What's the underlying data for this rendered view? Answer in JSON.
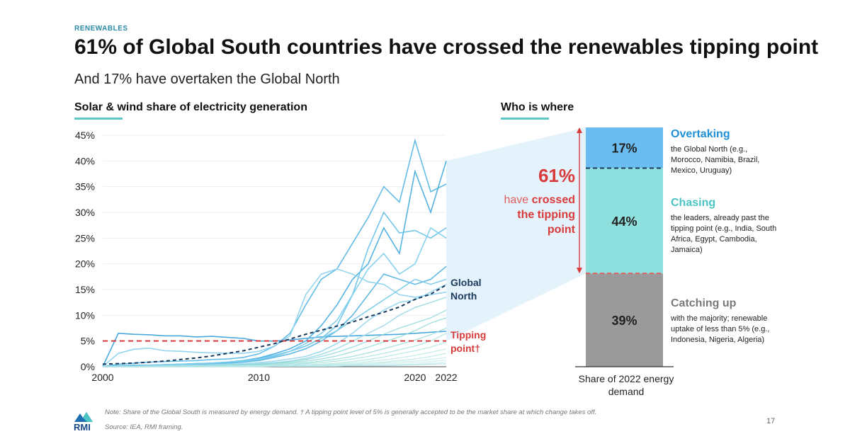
{
  "header": {
    "tag": "RENEWABLES",
    "title": "61% of Global South countries have crossed the renewables tipping point",
    "subtitle": "And 17% have overtaken the Global North"
  },
  "left_section_title": "Solar & wind share of electricity generation",
  "right_section_title": "Who is where",
  "callout": {
    "big_pct": "61%",
    "line1": "have ",
    "line1_bold": "crossed",
    "line2_bold": "the tipping",
    "line3_bold": "point"
  },
  "categories": [
    {
      "name": "Overtaking",
      "pct_label": "17%",
      "desc": "the Global North (e.g., Morocco, Namibia, Brazil, Mexico, Uruguay)",
      "color": "#1f8fd6"
    },
    {
      "name": "Chasing",
      "pct_label": "44%",
      "desc": "the leaders, already past the tipping point (e.g., India, South Africa, Egypt, Cambodia, Jamaica)",
      "color": "#4cc4c4"
    },
    {
      "name": "Catching up",
      "pct_label": "39%",
      "desc": "with the majority; renewable uptake of less than 5% (e.g., Indonesia, Nigeria, Algeria)",
      "color": "#7a7a7a"
    }
  ],
  "share_label": "Share of 2022 energy demand",
  "footer": {
    "note": "Note: Share of the Global South is measured by energy demand. † A tipping point level of 5% is generally accepted to be the market share at which change takes off.",
    "source": "Source: IEA, RMI framing.",
    "page": "17",
    "logo_text": "RMI"
  },
  "colors": {
    "accent": "#5cc8c8",
    "tipping_red": "#d93a3a",
    "global_north": "#1a3a5c",
    "bar_overtaking": "#6bbcf0",
    "bar_chasing": "#8ee0df",
    "bar_catching": "#9a9a9a"
  },
  "chart_data": [
    {
      "type": "line",
      "title": "Solar & wind share of electricity generation",
      "xlabel": "",
      "ylabel": "",
      "x": [
        2000,
        2001,
        2002,
        2003,
        2004,
        2005,
        2006,
        2007,
        2008,
        2009,
        2010,
        2011,
        2012,
        2013,
        2014,
        2015,
        2016,
        2017,
        2018,
        2019,
        2020,
        2021,
        2022
      ],
      "xticks": [
        "2000",
        "2010",
        "2020",
        "2022"
      ],
      "xtick_values": [
        2000,
        2010,
        2020,
        2022
      ],
      "yticks": [
        "0%",
        "5%",
        "10%",
        "15%",
        "20%",
        "25%",
        "30%",
        "35%",
        "40%",
        "45%"
      ],
      "ylim": [
        0,
        45
      ],
      "xlim": [
        2000,
        2022
      ],
      "global_north": {
        "name": "Global North",
        "values": [
          0.5,
          0.6,
          0.7,
          0.9,
          1.1,
          1.4,
          1.7,
          2.1,
          2.6,
          3.1,
          3.8,
          4.5,
          5.4,
          6.3,
          7.1,
          7.9,
          8.7,
          9.7,
          10.6,
          11.6,
          13.1,
          14.1,
          15.9
        ]
      },
      "tipping_point": {
        "name": "Tipping point†",
        "value": 5
      },
      "series": [
        {
          "values": [
            0,
            6.5,
            6.3,
            6.2,
            6.0,
            6.0,
            5.8,
            5.9,
            5.7,
            5.5,
            5.0,
            5.0,
            5.2,
            5.5,
            5.8,
            5.9,
            6.0,
            6.1,
            6.2,
            6.3,
            6.5,
            6.7,
            6.9
          ]
        },
        {
          "values": [
            0,
            0.5,
            0.7,
            0.9,
            1.0,
            1.1,
            1.2,
            1.4,
            1.5,
            1.8,
            2.5,
            4.0,
            6.5,
            12.0,
            17.0,
            19.0,
            24.0,
            29.0,
            35.0,
            32.0,
            44.0,
            34.0,
            35.5
          ]
        },
        {
          "values": [
            0,
            0.2,
            0.3,
            0.3,
            0.4,
            0.5,
            0.6,
            0.7,
            0.9,
            1.2,
            1.7,
            2.5,
            3.5,
            5.0,
            8.0,
            12.0,
            17.0,
            20.0,
            27.0,
            22.0,
            38.0,
            30.0,
            40.0
          ]
        },
        {
          "values": [
            0,
            0.1,
            0.2,
            0.2,
            0.3,
            0.4,
            0.5,
            0.7,
            0.9,
            1.2,
            1.6,
            2.2,
            3.0,
            4.0,
            5.5,
            8.0,
            14.0,
            23.0,
            30.0,
            26.0,
            26.5,
            25.0,
            27.0
          ]
        },
        {
          "values": [
            0,
            0.1,
            0.1,
            0.2,
            0.3,
            0.4,
            0.5,
            0.6,
            0.8,
            1.0,
            1.4,
            2.0,
            3.0,
            4.5,
            6.5,
            9.0,
            14.0,
            19.0,
            22.0,
            18.0,
            20.0,
            27.0,
            25.0
          ]
        },
        {
          "values": [
            0,
            0.1,
            0.1,
            0.2,
            0.2,
            0.3,
            0.4,
            0.5,
            0.7,
            0.9,
            1.2,
            1.8,
            2.5,
            3.5,
            5.0,
            7.0,
            10.0,
            14.0,
            18.0,
            17.0,
            16.0,
            17.0,
            19.5
          ]
        },
        {
          "values": [
            0,
            2.6,
            3.4,
            3.6,
            3.1,
            3.0,
            2.8,
            2.7,
            2.6,
            2.6,
            3.0,
            4.0,
            6.0,
            14.0,
            18.0,
            19.0,
            18.0,
            16.5,
            16.0,
            14.0,
            13.5,
            14.0,
            14.5
          ]
        },
        {
          "values": [
            0,
            0.1,
            0.2,
            0.3,
            0.4,
            0.5,
            0.6,
            0.7,
            0.9,
            1.1,
            1.5,
            2.0,
            3.0,
            4.0,
            5.5,
            7.0,
            9.0,
            11.0,
            13.0,
            15.0,
            17.0,
            16.0,
            17.0
          ]
        },
        {
          "values": [
            0,
            0.1,
            0.1,
            0.2,
            0.2,
            0.3,
            0.3,
            0.4,
            0.5,
            0.6,
            0.8,
            1.1,
            1.5,
            2.0,
            3.0,
            4.5,
            6.5,
            9.0,
            11.0,
            12.5,
            13.0,
            14.5,
            16.0
          ]
        },
        {
          "values": [
            0,
            0.1,
            0.1,
            0.1,
            0.2,
            0.2,
            0.3,
            0.3,
            0.4,
            0.5,
            0.6,
            0.8,
            1.1,
            1.6,
            2.4,
            3.5,
            5.0,
            6.5,
            8.0,
            10.0,
            11.5,
            12.5,
            13.5
          ]
        },
        {
          "values": [
            0,
            0.1,
            0.1,
            0.1,
            0.1,
            0.2,
            0.2,
            0.3,
            0.3,
            0.4,
            0.5,
            0.7,
            1.0,
            1.4,
            2.0,
            2.8,
            3.8,
            5.0,
            6.3,
            7.5,
            8.5,
            9.5,
            11.0
          ]
        },
        {
          "values": [
            0,
            0.0,
            0.1,
            0.1,
            0.1,
            0.1,
            0.2,
            0.2,
            0.3,
            0.3,
            0.4,
            0.6,
            0.8,
            1.1,
            1.5,
            2.1,
            2.9,
            3.8,
            4.8,
            5.8,
            7.0,
            8.5,
            9.5
          ]
        },
        {
          "values": [
            0,
            0.0,
            0.0,
            0.1,
            0.1,
            0.1,
            0.1,
            0.2,
            0.2,
            0.3,
            0.3,
            0.4,
            0.6,
            0.8,
            1.1,
            1.5,
            2.0,
            2.7,
            3.5,
            4.3,
            5.2,
            6.2,
            7.5
          ]
        },
        {
          "values": [
            0,
            0.0,
            0.0,
            0.0,
            0.1,
            0.1,
            0.1,
            0.1,
            0.2,
            0.2,
            0.2,
            0.3,
            0.4,
            0.6,
            0.8,
            1.1,
            1.5,
            2.0,
            2.6,
            3.3,
            4.0,
            5.0,
            6.5
          ]
        },
        {
          "values": [
            0,
            0.0,
            0.0,
            0.0,
            0.0,
            0.1,
            0.1,
            0.1,
            0.1,
            0.1,
            0.2,
            0.2,
            0.3,
            0.4,
            0.5,
            0.7,
            1.0,
            1.4,
            1.9,
            2.5,
            3.1,
            3.8,
            4.8
          ]
        },
        {
          "values": [
            0,
            0.0,
            0.0,
            0.0,
            0.0,
            0.0,
            0.1,
            0.1,
            0.1,
            0.1,
            0.1,
            0.2,
            0.2,
            0.3,
            0.4,
            0.5,
            0.7,
            1.0,
            1.3,
            1.7,
            2.2,
            2.8,
            3.5
          ]
        },
        {
          "values": [
            0,
            0.0,
            0.0,
            0.0,
            0.0,
            0.0,
            0.0,
            0.1,
            0.1,
            0.1,
            0.1,
            0.1,
            0.2,
            0.2,
            0.3,
            0.4,
            0.5,
            0.7,
            0.9,
            1.2,
            1.5,
            2.0,
            2.6
          ]
        },
        {
          "values": [
            0,
            0.0,
            0.0,
            0.0,
            0.0,
            0.0,
            0.0,
            0.0,
            0.1,
            0.1,
            0.1,
            0.1,
            0.1,
            0.2,
            0.2,
            0.3,
            0.4,
            0.5,
            0.7,
            0.9,
            1.1,
            1.4,
            1.8
          ]
        },
        {
          "values": [
            0,
            0.0,
            0.0,
            0.0,
            0.0,
            0.0,
            0.0,
            0.0,
            0.0,
            0.1,
            0.1,
            0.1,
            0.1,
            0.1,
            0.2,
            0.2,
            0.3,
            0.4,
            0.5,
            0.6,
            0.8,
            1.0,
            1.3
          ]
        },
        {
          "values": [
            0,
            0.0,
            0.0,
            0.0,
            0.0,
            0.0,
            0.0,
            0.0,
            0.0,
            0.0,
            0.1,
            0.1,
            0.1,
            0.1,
            0.1,
            0.2,
            0.2,
            0.3,
            0.3,
            0.4,
            0.5,
            0.7,
            0.9
          ]
        },
        {
          "values": [
            0,
            0.0,
            0.0,
            0.0,
            0.0,
            0.0,
            0.0,
            0.0,
            0.0,
            0.0,
            0.0,
            0.1,
            0.1,
            0.1,
            0.1,
            0.1,
            0.2,
            0.2,
            0.2,
            0.3,
            0.4,
            0.5,
            0.6
          ]
        }
      ]
    },
    {
      "type": "bar",
      "title": "Who is where",
      "stacked": true,
      "categories": [
        "Share of 2022 energy demand"
      ],
      "series": [
        {
          "name": "Catching up",
          "values": [
            39
          ]
        },
        {
          "name": "Chasing",
          "values": [
            44
          ]
        },
        {
          "name": "Overtaking",
          "values": [
            17
          ]
        }
      ],
      "ylim": [
        0,
        100
      ]
    }
  ]
}
